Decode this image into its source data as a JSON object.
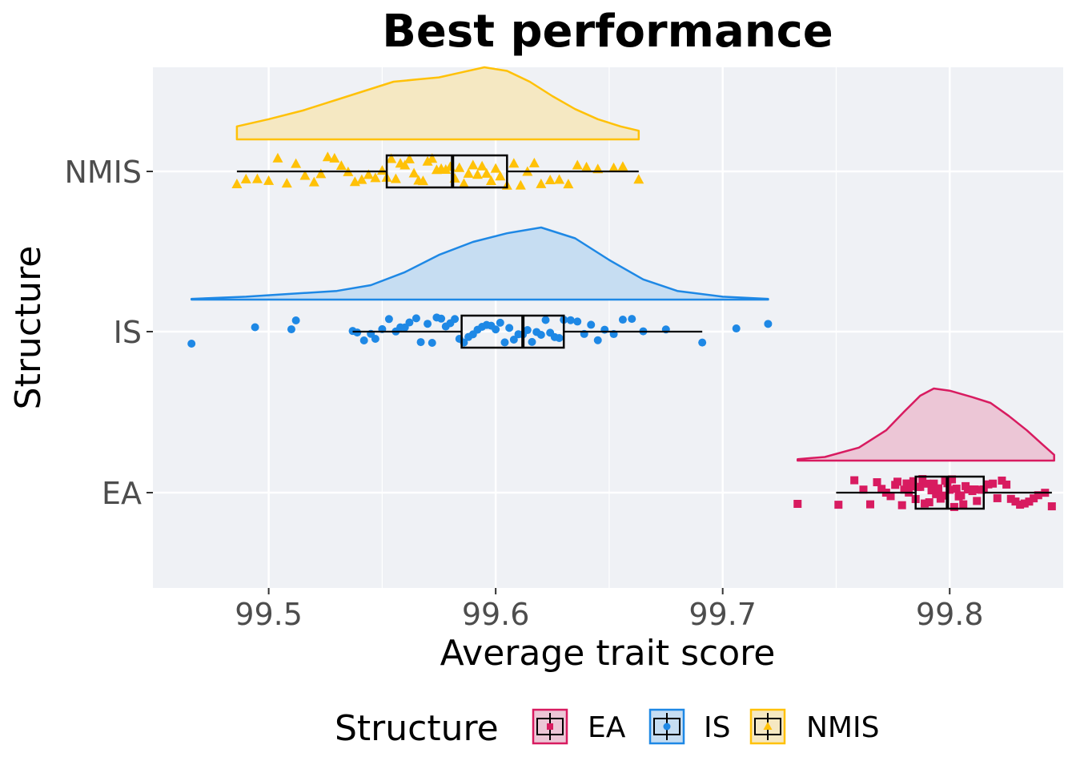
{
  "chart_data": {
    "type": "raincloud",
    "title": "Best performance",
    "xlabel": "Average trait score",
    "ylabel": "Structure",
    "xlim": [
      99.449,
      99.85
    ],
    "x_ticks": [
      99.5,
      99.6,
      99.7,
      99.8
    ],
    "x_tick_labels": [
      "99.5",
      "99.6",
      "99.7",
      "99.8"
    ],
    "categories": [
      "EA",
      "IS",
      "NMIS"
    ],
    "grid": true,
    "legend": {
      "title": "Structure",
      "position": "bottom",
      "items": [
        "EA",
        "IS",
        "NMIS"
      ]
    },
    "series": [
      {
        "name": "EA",
        "color": "#d81b60",
        "fill": "#ecc6d6",
        "marker": "square",
        "box": {
          "min": 99.75,
          "q1": 99.785,
          "median": 99.799,
          "q3": 99.815,
          "max": 99.845
        },
        "density": {
          "x": [
            99.733,
            99.745,
            99.76,
            99.772,
            99.78,
            99.787,
            99.793,
            99.8,
            99.81,
            99.818,
            99.826,
            99.834,
            99.841,
            99.846
          ],
          "y": [
            0.02,
            0.05,
            0.18,
            0.42,
            0.68,
            0.9,
            1.0,
            0.97,
            0.88,
            0.8,
            0.62,
            0.42,
            0.22,
            0.08
          ]
        },
        "points": [
          99.733,
          99.751,
          99.758,
          99.762,
          99.765,
          99.768,
          99.77,
          99.772,
          99.774,
          99.776,
          99.777,
          99.779,
          99.78,
          99.781,
          99.782,
          99.783,
          99.784,
          99.785,
          99.786,
          99.787,
          99.788,
          99.789,
          99.79,
          99.791,
          99.792,
          99.793,
          99.794,
          99.795,
          99.796,
          99.797,
          99.798,
          99.799,
          99.8,
          99.801,
          99.802,
          99.803,
          99.804,
          99.805,
          99.806,
          99.807,
          99.808,
          99.81,
          99.811,
          99.812,
          99.814,
          99.815,
          99.817,
          99.819,
          99.821,
          99.823,
          99.825,
          99.827,
          99.829,
          99.831,
          99.833,
          99.835,
          99.837,
          99.839,
          99.842,
          99.845
        ]
      },
      {
        "name": "IS",
        "color": "#1e88e5",
        "fill": "#c6ddf2",
        "marker": "circle",
        "box": {
          "min": 99.537,
          "q1": 99.585,
          "median": 99.612,
          "q3": 99.63,
          "max": 99.691
        },
        "density": {
          "x": [
            99.466,
            99.49,
            99.51,
            99.53,
            99.545,
            99.56,
            99.575,
            99.59,
            99.605,
            99.62,
            99.635,
            99.65,
            99.665,
            99.68,
            99.7,
            99.72
          ],
          "y": [
            0.01,
            0.04,
            0.08,
            0.12,
            0.2,
            0.38,
            0.62,
            0.8,
            0.92,
            1.0,
            0.85,
            0.55,
            0.28,
            0.12,
            0.04,
            0.01
          ]
        },
        "points": [
          99.466,
          99.494,
          99.51,
          99.512,
          99.537,
          99.539,
          99.542,
          99.545,
          99.547,
          99.55,
          99.553,
          99.556,
          99.558,
          99.56,
          99.562,
          99.565,
          99.567,
          99.57,
          99.572,
          99.574,
          99.576,
          99.578,
          99.58,
          99.582,
          99.584,
          99.586,
          99.588,
          99.59,
          99.592,
          99.594,
          99.596,
          99.598,
          99.6,
          99.602,
          99.604,
          99.606,
          99.608,
          99.61,
          99.612,
          99.614,
          99.616,
          99.618,
          99.62,
          99.622,
          99.624,
          99.626,
          99.628,
          99.63,
          99.633,
          99.636,
          99.639,
          99.642,
          99.645,
          99.648,
          99.652,
          99.656,
          99.66,
          99.665,
          99.675,
          99.691,
          99.706,
          99.72
        ]
      },
      {
        "name": "NMIS",
        "color": "#ffc107",
        "fill": "#f5e8c2",
        "marker": "triangle",
        "box": {
          "min": 99.486,
          "q1": 99.552,
          "median": 99.581,
          "q3": 99.605,
          "max": 99.663
        },
        "density": {
          "x": [
            99.486,
            99.5,
            99.515,
            99.53,
            99.545,
            99.555,
            99.565,
            99.575,
            99.585,
            99.595,
            99.605,
            99.615,
            99.625,
            99.635,
            99.645,
            99.655,
            99.663
          ],
          "y": [
            0.18,
            0.28,
            0.4,
            0.55,
            0.7,
            0.8,
            0.83,
            0.86,
            0.93,
            1.0,
            0.95,
            0.8,
            0.6,
            0.42,
            0.28,
            0.18,
            0.12
          ]
        },
        "points": [
          99.486,
          99.49,
          99.495,
          99.5,
          99.504,
          99.508,
          99.512,
          99.516,
          99.52,
          99.523,
          99.526,
          99.529,
          99.532,
          99.535,
          99.538,
          99.541,
          99.544,
          99.547,
          99.55,
          99.552,
          99.554,
          99.556,
          99.558,
          99.56,
          99.562,
          99.564,
          99.566,
          99.568,
          99.57,
          99.572,
          99.574,
          99.576,
          99.578,
          99.58,
          99.582,
          99.584,
          99.586,
          99.588,
          99.59,
          99.592,
          99.594,
          99.596,
          99.598,
          99.6,
          99.602,
          99.605,
          99.608,
          99.611,
          99.614,
          99.617,
          99.62,
          99.624,
          99.628,
          99.632,
          99.636,
          99.64,
          99.645,
          99.652,
          99.656,
          99.663
        ]
      }
    ]
  }
}
